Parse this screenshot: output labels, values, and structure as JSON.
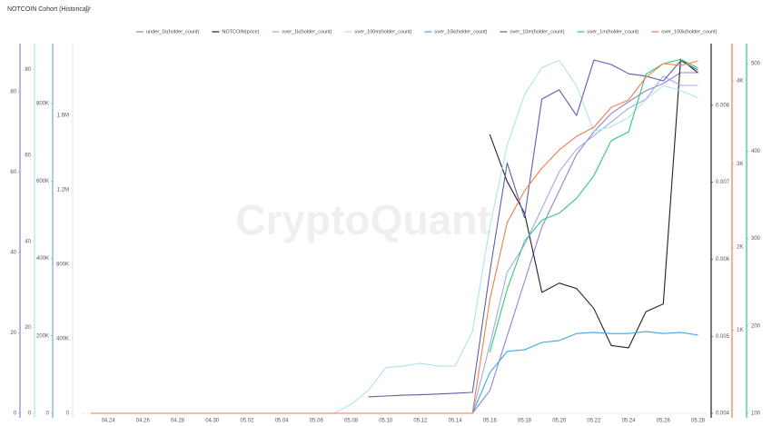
{
  "chart_data": {
    "type": "line",
    "title": "NOTCOIN Cohort (Historical)",
    "watermark": "CryptoQuant",
    "categories": [
      null,
      "04.24",
      null,
      "04.26",
      null,
      "04.28",
      null,
      "04.30",
      null,
      "05.02",
      null,
      "05.04",
      null,
      "05.06",
      null,
      "05.08",
      null,
      "05.10",
      null,
      "05.12",
      null,
      "05.14",
      null,
      "05.16",
      null,
      "05.18",
      null,
      "05.20",
      null,
      "05.22",
      null,
      "05.24",
      null,
      "05.26",
      null,
      "05.28"
    ],
    "y_axes": [
      {
        "side": "left",
        "color": "#8a86d4",
        "ylim": [
          0,
          92
        ],
        "yticks": [
          0,
          20,
          40,
          60,
          80
        ]
      },
      {
        "side": "left",
        "color": "#b5e3f2",
        "ylim": [
          0,
          86
        ],
        "yticks": [
          0,
          20,
          40,
          60,
          80
        ]
      },
      {
        "side": "left",
        "color": "#64aee6",
        "ylim": [
          0,
          955000
        ],
        "yticks": [
          0,
          {
            "value": 200000,
            "label": "200K"
          },
          {
            "value": 400000,
            "label": "400K"
          },
          {
            "value": 600000,
            "label": "600K"
          },
          {
            "value": 800000,
            "label": "800K"
          }
        ]
      },
      {
        "side": "left",
        "color": "#dfe6ee",
        "ylim": [
          0,
          1985000
        ],
        "yticks": [
          0,
          {
            "value": 400000,
            "label": "400K"
          },
          {
            "value": 800000,
            "label": "800K"
          },
          {
            "value": 1200000,
            "label": "1.2M"
          },
          {
            "value": 1600000,
            "label": "1.6M"
          }
        ]
      },
      {
        "side": "right",
        "color": "#222222",
        "ylim": [
          0.004,
          0.0088
        ],
        "yticks": [
          0.004,
          0.005,
          0.006,
          0.007,
          0.008
        ]
      },
      {
        "side": "right",
        "color": "#f07d45",
        "ylim": [
          0,
          4450
        ],
        "yticks": [
          {
            "value": 1000,
            "label": "1K"
          },
          {
            "value": 2000,
            "label": "2K"
          },
          {
            "value": 3000,
            "label": "3K"
          },
          {
            "value": 4000,
            "label": "4K"
          }
        ]
      },
      {
        "side": "right",
        "color": "#2fcb78",
        "ylim": [
          100,
          523
        ],
        "yticks": [
          100,
          200,
          300,
          400,
          500
        ]
      }
    ],
    "series": [
      {
        "name": "under_1k(holder_count)",
        "color": "#8f84d2",
        "axis": 3,
        "values": [
          0,
          0,
          0,
          0,
          0,
          0,
          0,
          0,
          0,
          0,
          0,
          0,
          0,
          0,
          0,
          0,
          0,
          0,
          0,
          0,
          0,
          0,
          0,
          122000,
          415000,
          707000,
          1000000,
          1195000,
          1390000,
          1512000,
          1610000,
          1673000,
          1732000,
          1771000,
          1829000,
          1829000
        ]
      },
      {
        "name": "NOTCOIN(price)",
        "color": "#222222",
        "axis": 4,
        "values": [
          null,
          null,
          null,
          null,
          null,
          null,
          null,
          null,
          null,
          null,
          null,
          null,
          null,
          null,
          null,
          null,
          null,
          null,
          null,
          null,
          null,
          null,
          null,
          0.00762,
          0.00701,
          0.0066,
          0.00557,
          0.00569,
          0.00562,
          0.00536,
          0.00488,
          0.00485,
          0.00532,
          0.00542,
          0.0086,
          0.00842
        ]
      },
      {
        "name": "over_1k(holder_count)",
        "color": "#a3a9e8",
        "axis": 0,
        "values": [
          0,
          0,
          0,
          0,
          0,
          0,
          0,
          0,
          0,
          0,
          0,
          0,
          0,
          0,
          0,
          0,
          0,
          0,
          0,
          0,
          0,
          0,
          0,
          17.0,
          35.1,
          41.9,
          51.0,
          60.1,
          65.7,
          69.1,
          72.5,
          75.9,
          78.2,
          83.9,
          81.6,
          81.6
        ]
      },
      {
        "name": "over_100m(holder_count)",
        "color": "#aee3f3",
        "axis": 1,
        "values": [
          0,
          0,
          0,
          0,
          0,
          0,
          0,
          0,
          0,
          0,
          0,
          0,
          0,
          0,
          0,
          2.1,
          5.3,
          10.6,
          11.0,
          11.6,
          11.0,
          11.0,
          19.0,
          43.4,
          62.4,
          74.1,
          80.4,
          82.1,
          76.2,
          65.6,
          66.7,
          68.8,
          73.0,
          76.2,
          75.1,
          73.4
        ]
      },
      {
        "name": "over_10k(holder_count)",
        "color": "#3fa6e2",
        "axis": 2,
        "values": [
          0,
          0,
          0,
          0,
          0,
          0,
          0,
          0,
          0,
          0,
          0,
          0,
          0,
          0,
          0,
          0,
          0,
          0,
          0,
          0,
          0,
          0,
          0,
          105000,
          160000,
          164000,
          183000,
          188000,
          206000,
          209000,
          206000,
          206000,
          211000,
          206000,
          209000,
          202000
        ]
      },
      {
        "name": "over_10m(holder_count)",
        "color": "#5d5fae",
        "axis": 0,
        "values": [
          null,
          null,
          null,
          null,
          null,
          null,
          null,
          null,
          null,
          null,
          null,
          null,
          null,
          null,
          null,
          null,
          4.1,
          4.3,
          4.5,
          4.6,
          4.8,
          5.0,
          5.2,
          35.1,
          62.3,
          48.7,
          78.2,
          80.5,
          74.1,
          87.9,
          86.8,
          84.5,
          83.9,
          82.7,
          87.7,
          85.4
        ]
      },
      {
        "name": "over_1m(holder_count)",
        "color": "#2fcb78",
        "axis": 6,
        "values": [
          null,
          null,
          null,
          null,
          null,
          null,
          null,
          null,
          null,
          null,
          null,
          null,
          null,
          null,
          null,
          null,
          null,
          null,
          null,
          null,
          null,
          null,
          null,
          170,
          242,
          297,
          321,
          329,
          346,
          372,
          412,
          422,
          488,
          500,
          505,
          495
        ]
      },
      {
        "name": "over_100k(holder_count)",
        "color": "#f07d45",
        "axis": 5,
        "values": [
          0,
          0,
          0,
          0,
          0,
          0,
          0,
          0,
          0,
          0,
          0,
          0,
          0,
          0,
          0,
          0,
          0,
          0,
          0,
          0,
          0,
          0,
          0,
          1366,
          2295,
          2678,
          2951,
          3170,
          3334,
          3444,
          3684,
          3771,
          4045,
          4209,
          4187,
          4241
        ]
      }
    ]
  }
}
